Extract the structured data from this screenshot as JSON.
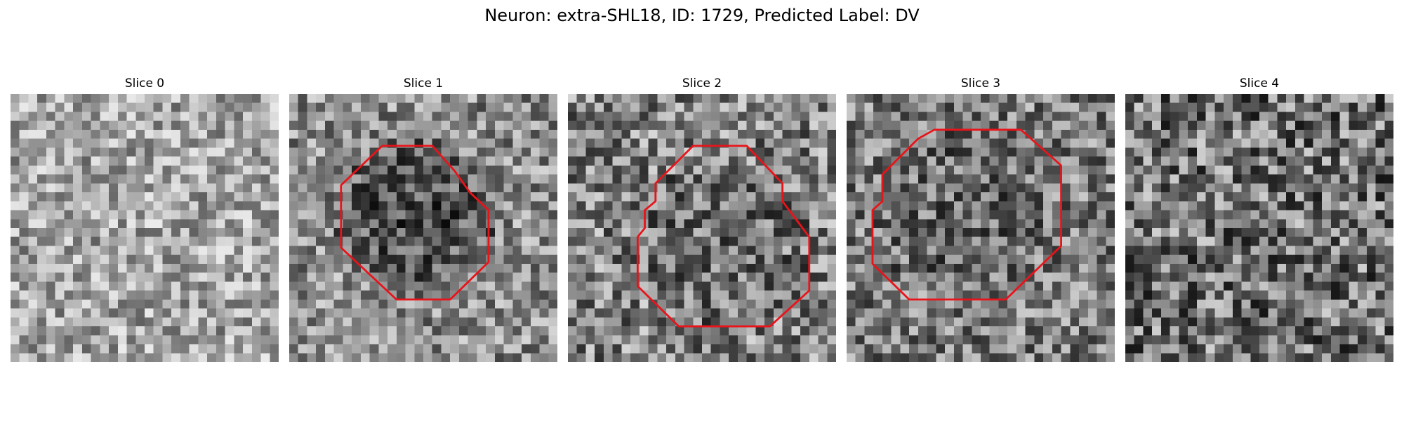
{
  "figure": {
    "title": "Neuron: extra-SHL18, ID: 1729, Predicted Label: DV"
  },
  "panels": [
    {
      "title": "Slice 0",
      "has_outline": false
    },
    {
      "title": "Slice 1",
      "has_outline": true
    },
    {
      "title": "Slice 2",
      "has_outline": true
    },
    {
      "title": "Slice 3",
      "has_outline": true
    },
    {
      "title": "Slice 4",
      "has_outline": false
    }
  ],
  "colors": {
    "outline": "#e8141a",
    "background": "#ffffff"
  }
}
